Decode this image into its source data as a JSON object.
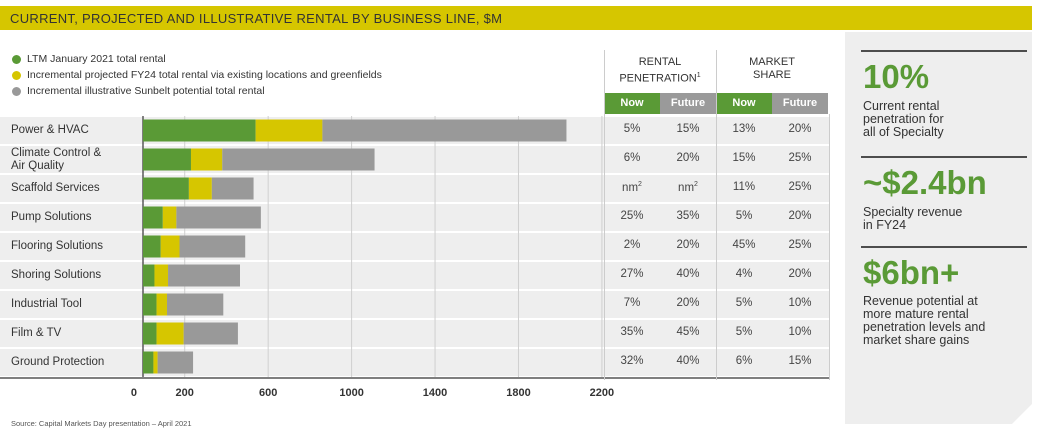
{
  "header": {
    "title": "CURRENT, PROJECTED AND ILLUSTRATIVE RENTAL BY BUSINESS LINE, $M"
  },
  "legend": [
    {
      "label": "LTM January 2021 total rental",
      "color": "#5a9a36"
    },
    {
      "label": "Incremental projected FY24 total rental via existing locations and greenfields",
      "color": "#d6c600"
    },
    {
      "label": "Incremental illustrative Sunbelt potential total rental",
      "color": "#999999"
    }
  ],
  "table": {
    "rental_penetration_header": [
      "RENTAL",
      "PENETRATION"
    ],
    "rental_penetration_superscript": "1",
    "market_share_header": [
      "MARKET",
      "SHARE"
    ],
    "now_label": "Now",
    "future_label": "Future",
    "nm_superscript": "2",
    "rows": [
      {
        "rp_now": "5%",
        "rp_future": "15%",
        "ms_now": "13%",
        "ms_future": "20%"
      },
      {
        "rp_now": "6%",
        "rp_future": "20%",
        "ms_now": "15%",
        "ms_future": "25%"
      },
      {
        "rp_now": "nm",
        "rp_future": "nm",
        "ms_now": "11%",
        "ms_future": "25%"
      },
      {
        "rp_now": "25%",
        "rp_future": "35%",
        "ms_now": "5%",
        "ms_future": "20%"
      },
      {
        "rp_now": "2%",
        "rp_future": "20%",
        "ms_now": "45%",
        "ms_future": "25%"
      },
      {
        "rp_now": "27%",
        "rp_future": "40%",
        "ms_now": "4%",
        "ms_future": "20%"
      },
      {
        "rp_now": "7%",
        "rp_future": "20%",
        "ms_now": "5%",
        "ms_future": "10%"
      },
      {
        "rp_now": "35%",
        "rp_future": "45%",
        "ms_now": "5%",
        "ms_future": "10%"
      },
      {
        "rp_now": "32%",
        "rp_future": "40%",
        "ms_now": "6%",
        "ms_future": "15%"
      }
    ]
  },
  "stats": [
    {
      "value": "10%",
      "desc": [
        "Current rental",
        "penetration for",
        "all of Specialty"
      ]
    },
    {
      "value": "~$2.4bn",
      "desc": [
        "Specialty revenue",
        "in FY24"
      ]
    },
    {
      "value": "$6bn+",
      "desc": [
        "Revenue potential at",
        "more mature rental",
        "penetration levels and",
        "market share gains"
      ]
    }
  ],
  "source": "Source: Capital Markets Day presentation – April 2021",
  "chart_data": {
    "type": "bar",
    "orientation": "horizontal",
    "stacked": true,
    "title": "CURRENT, PROJECTED AND ILLUSTRATIVE RENTAL BY BUSINESS LINE, $M",
    "categories": [
      "Power & HVAC",
      "Climate Control & Air Quality",
      "Scaffold Services",
      "Pump Solutions",
      "Flooring Solutions",
      "Shoring Solutions",
      "Industrial Tool",
      "Film & TV",
      "Ground Protection"
    ],
    "category_lines": [
      [
        "Power & HVAC"
      ],
      [
        "Climate Control &",
        "Air Quality"
      ],
      [
        "Scaffold Services"
      ],
      [
        "Pump Solutions"
      ],
      [
        "Flooring Solutions"
      ],
      [
        "Shoring Solutions"
      ],
      [
        "Industrial Tool"
      ],
      [
        "Film & TV"
      ],
      [
        "Ground Protection"
      ]
    ],
    "series": [
      {
        "name": "LTM January 2021 total rental",
        "color": "#5a9a36",
        "values": [
          540,
          230,
          220,
          95,
          85,
          55,
          65,
          65,
          50
        ]
      },
      {
        "name": "Incremental projected FY24 total rental via existing locations and greenfields",
        "color": "#d6c600",
        "values": [
          320,
          150,
          110,
          65,
          90,
          65,
          50,
          130,
          20
        ]
      },
      {
        "name": "Incremental illustrative Sunbelt potential total rental",
        "color": "#999999",
        "values": [
          1170,
          730,
          200,
          405,
          315,
          345,
          270,
          260,
          170
        ]
      }
    ],
    "xticks": [
      0,
      200,
      600,
      1000,
      1400,
      1800,
      2200
    ],
    "xlim": [
      0,
      2200
    ],
    "gridlines": true,
    "legend_position": "top-left"
  }
}
